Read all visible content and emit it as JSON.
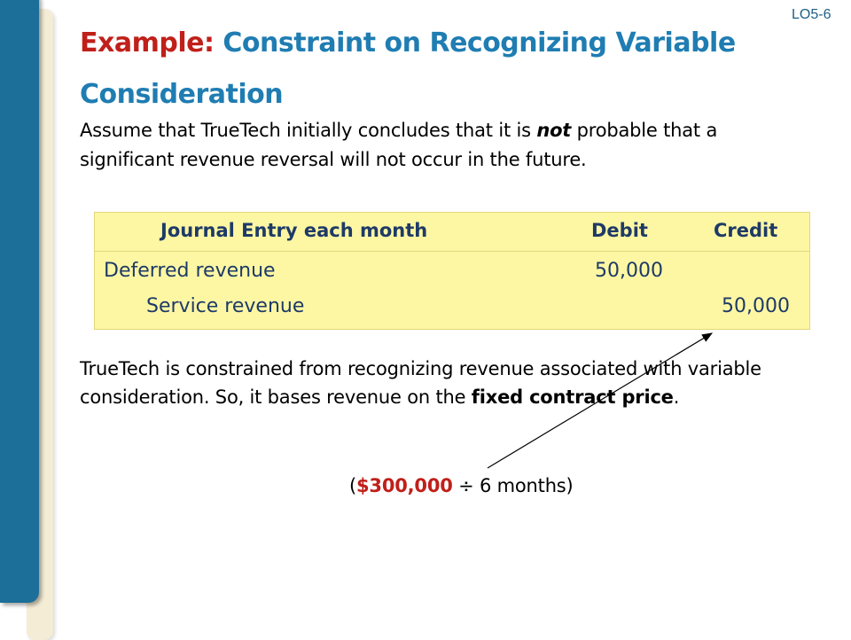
{
  "lo_tag": "LO5-6",
  "title": {
    "prefix": "Example:",
    "main": "Constraint on Recognizing Variable Consideration"
  },
  "intro": {
    "before": "Assume that TrueTech initially concludes that it is ",
    "emphasis": "not",
    "after": " probable that a significant revenue reversal will not occur in the future."
  },
  "journal": {
    "headers": {
      "description": "Journal Entry each month",
      "debit": "Debit",
      "credit": "Credit"
    },
    "rows": [
      {
        "account": "Deferred revenue",
        "debit": "50,000",
        "credit": ""
      },
      {
        "account": "Service revenue",
        "debit": "",
        "credit": "50,000"
      }
    ]
  },
  "explanation": {
    "text": "TrueTech is constrained from recognizing revenue associated with variable consideration.  So, it bases revenue on the ",
    "bold": "fixed contract price",
    "end": "."
  },
  "calculation": {
    "open": "(",
    "amount": "$300,000",
    "rest": " ÷ 6 months)"
  },
  "colors": {
    "title_red": "#c0201a",
    "title_blue": "#1f7db2",
    "journal_bg": "#fdf7a4",
    "journal_text": "#1e3a66",
    "left_bar_blue": "#1b6f99"
  }
}
